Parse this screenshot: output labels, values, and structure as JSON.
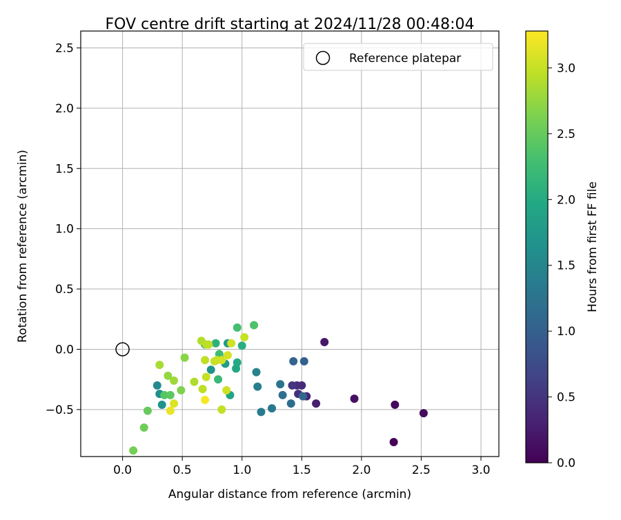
{
  "chart_data": {
    "type": "scatter",
    "title": "FOV centre drift starting at 2024/11/28 00:48:04",
    "xlabel": "Angular distance from reference (arcmin)",
    "ylabel": "Rotation from reference (arcmin)",
    "xlim": [
      -0.35,
      3.15
    ],
    "ylim": [
      -0.89,
      2.64
    ],
    "xticks": [
      "0.0",
      "0.5",
      "1.0",
      "1.5",
      "2.0",
      "2.5",
      "3.0"
    ],
    "yticks": [
      "−0.5",
      "0.0",
      "0.5",
      "1.0",
      "1.5",
      "2.0",
      "2.5"
    ],
    "grid": true,
    "legend": {
      "position": "top-right",
      "entries": [
        "Reference platepar"
      ]
    },
    "reference_point": {
      "x": 0.0,
      "y": 0.0
    },
    "colorbar": {
      "label": "Hours from first FF file",
      "range": [
        0.0,
        3.28
      ],
      "ticks": [
        "0.0",
        "0.5",
        "1.0",
        "1.5",
        "2.0",
        "2.5",
        "3.0"
      ],
      "colormap": "viridis"
    },
    "points": [
      {
        "x": 2.27,
        "y": -0.77,
        "h": 0.02
      },
      {
        "x": 2.28,
        "y": -0.46,
        "h": 0.05
      },
      {
        "x": 2.52,
        "y": -0.53,
        "h": 0.08
      },
      {
        "x": 1.94,
        "y": -0.41,
        "h": 0.15
      },
      {
        "x": 1.69,
        "y": 0.06,
        "h": 0.22
      },
      {
        "x": 1.62,
        "y": -0.45,
        "h": 0.28
      },
      {
        "x": 1.54,
        "y": -0.39,
        "h": 0.33
      },
      {
        "x": 1.5,
        "y": -0.3,
        "h": 0.38
      },
      {
        "x": 1.46,
        "y": -0.3,
        "h": 0.43
      },
      {
        "x": 1.47,
        "y": -0.37,
        "h": 0.45
      },
      {
        "x": 1.42,
        "y": -0.3,
        "h": 0.5
      },
      {
        "x": 1.52,
        "y": -0.1,
        "h": 1.0
      },
      {
        "x": 1.43,
        "y": -0.1,
        "h": 1.05
      },
      {
        "x": 1.51,
        "y": -0.39,
        "h": 1.1
      },
      {
        "x": 1.41,
        "y": -0.45,
        "h": 1.15
      },
      {
        "x": 1.34,
        "y": -0.38,
        "h": 1.2
      },
      {
        "x": 1.32,
        "y": -0.29,
        "h": 1.25
      },
      {
        "x": 1.25,
        "y": -0.49,
        "h": 1.3
      },
      {
        "x": 1.16,
        "y": -0.52,
        "h": 1.35
      },
      {
        "x": 1.13,
        "y": -0.31,
        "h": 1.4
      },
      {
        "x": 1.12,
        "y": -0.19,
        "h": 1.45
      },
      {
        "x": 0.29,
        "y": -0.3,
        "h": 1.55
      },
      {
        "x": 0.31,
        "y": -0.37,
        "h": 1.6
      },
      {
        "x": 0.33,
        "y": -0.46,
        "h": 1.65
      },
      {
        "x": 0.74,
        "y": -0.17,
        "h": 1.7
      },
      {
        "x": 0.88,
        "y": 0.05,
        "h": 1.75
      },
      {
        "x": 0.86,
        "y": -0.12,
        "h": 1.8
      },
      {
        "x": 0.82,
        "y": -0.08,
        "h": 1.85
      },
      {
        "x": 0.9,
        "y": -0.38,
        "h": 1.9
      },
      {
        "x": 0.95,
        "y": -0.16,
        "h": 1.95
      },
      {
        "x": 0.96,
        "y": -0.11,
        "h": 2.0
      },
      {
        "x": 1.0,
        "y": 0.03,
        "h": 2.05
      },
      {
        "x": 0.78,
        "y": 0.05,
        "h": 2.1
      },
      {
        "x": 0.69,
        "y": 0.04,
        "h": 2.12
      },
      {
        "x": 0.8,
        "y": -0.25,
        "h": 2.2
      },
      {
        "x": 0.81,
        "y": -0.04,
        "h": 2.25
      },
      {
        "x": 0.96,
        "y": 0.18,
        "h": 2.3
      },
      {
        "x": 1.1,
        "y": 0.2,
        "h": 2.35
      },
      {
        "x": 0.35,
        "y": -0.38,
        "h": 2.4
      },
      {
        "x": 0.4,
        "y": -0.38,
        "h": 2.45
      },
      {
        "x": 0.21,
        "y": -0.51,
        "h": 2.5
      },
      {
        "x": 0.18,
        "y": -0.65,
        "h": 2.55
      },
      {
        "x": 0.09,
        "y": -0.84,
        "h": 2.58
      },
      {
        "x": 0.49,
        "y": -0.34,
        "h": 2.65
      },
      {
        "x": 0.52,
        "y": -0.07,
        "h": 2.7
      },
      {
        "x": 0.38,
        "y": -0.22,
        "h": 2.75
      },
      {
        "x": 0.43,
        "y": -0.26,
        "h": 2.8
      },
      {
        "x": 0.31,
        "y": -0.13,
        "h": 2.85
      },
      {
        "x": 0.6,
        "y": -0.27,
        "h": 2.88
      },
      {
        "x": 0.66,
        "y": 0.07,
        "h": 2.9
      },
      {
        "x": 0.7,
        "y": 0.04,
        "h": 2.93
      },
      {
        "x": 0.72,
        "y": 0.04,
        "h": 2.95
      },
      {
        "x": 0.69,
        "y": -0.09,
        "h": 2.97
      },
      {
        "x": 0.77,
        "y": -0.1,
        "h": 3.0
      },
      {
        "x": 0.79,
        "y": -0.09,
        "h": 3.02
      },
      {
        "x": 0.83,
        "y": -0.09,
        "h": 3.05
      },
      {
        "x": 0.88,
        "y": -0.05,
        "h": 3.08
      },
      {
        "x": 0.91,
        "y": 0.05,
        "h": 3.05
      },
      {
        "x": 1.02,
        "y": 0.1,
        "h": 3.0
      },
      {
        "x": 0.87,
        "y": -0.34,
        "h": 3.05
      },
      {
        "x": 0.83,
        "y": -0.5,
        "h": 2.98
      },
      {
        "x": 0.67,
        "y": -0.33,
        "h": 2.95
      },
      {
        "x": 0.7,
        "y": -0.23,
        "h": 3.0
      },
      {
        "x": 0.43,
        "y": -0.45,
        "h": 3.1
      },
      {
        "x": 0.4,
        "y": -0.51,
        "h": 3.18
      },
      {
        "x": 0.69,
        "y": -0.42,
        "h": 3.25
      }
    ]
  }
}
